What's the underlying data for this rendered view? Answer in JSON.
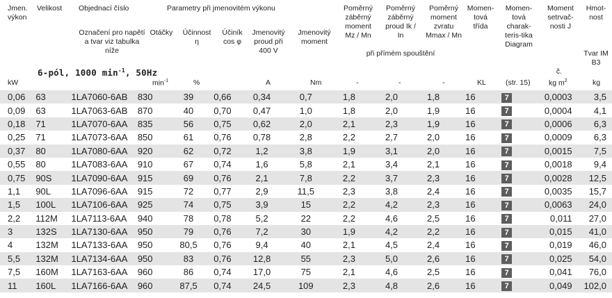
{
  "headers": {
    "power": "Jmen. výkon",
    "size": "Velikost",
    "order": "Objednací číslo",
    "order_sub": "Označení pro napětí a tvar viz tabulka níže",
    "rated_group": "Parametry při jmenovitém výkonu",
    "speed": "Otáčky",
    "eff": "Účinnost η",
    "pf": "Účiník cos φ",
    "current": "Jmenovitý proud při 400 V",
    "torque": "Jmenovitý moment",
    "start_torque": "Poměrný záběrný moment Mz / Mn",
    "start_current": "Poměrný záběrný proud Ik / In",
    "max_torque": "Poměrný moment zvratu Mmax / Mn",
    "class": "Momen-tová třída",
    "char": "Momen-tová charak-teris-tika Diagram",
    "inertia": "Moment setrvač-nosti J",
    "weight": "Hmot-nost",
    "weight_sub": "Tvar IM B3",
    "direct_start": "při přímém spouštění",
    "subtitle_main": "6-pól, 1000 min",
    "subtitle_sup": "-1",
    "subtitle_end": ", 50Hz",
    "inertia_c": "č."
  },
  "units": {
    "power": "kW",
    "speed": "min",
    "speed_sup": "-1",
    "eff": "%",
    "current": "A",
    "torque": "Nm",
    "dash1": "-",
    "dash2": "-",
    "dash3": "-",
    "class": "KL",
    "char": "(str. 15)",
    "inertia": "kg m",
    "inertia_sup": "2",
    "weight": "kg"
  },
  "rows": [
    [
      "0,06",
      "63",
      "1LA7060-6AB",
      "830",
      "39",
      "0,66",
      "0,34",
      "0,7",
      "1,8",
      "2,0",
      "1,8",
      "16",
      "7",
      "0,0003",
      "3,5"
    ],
    [
      "0,09",
      "63",
      "1LA7063-6AB",
      "870",
      "40",
      "0,70",
      "0,47",
      "1,0",
      "1,8",
      "2,0",
      "1,9",
      "16",
      "7",
      "0,0004",
      "4,1"
    ],
    [
      "0,18",
      "71",
      "1LA7070-6AA",
      "835",
      "56",
      "0,75",
      "0,62",
      "2,0",
      "2,1",
      "2,3",
      "1,9",
      "16",
      "7",
      "0,0006",
      "6,3"
    ],
    [
      "0,25",
      "71",
      "1LA7073-6AA",
      "850",
      "61",
      "0,76",
      "0,78",
      "2,8",
      "2,2",
      "2,7",
      "2,0",
      "16",
      "7",
      "0,0009",
      "6,3"
    ],
    [
      "0,37",
      "80",
      "1LA7080-6AA",
      "920",
      "62",
      "0,72",
      "1,2",
      "3,8",
      "1,9",
      "3,1",
      "2,0",
      "16",
      "7",
      "0,0015",
      "7,5"
    ],
    [
      "0,55",
      "80",
      "1LA7083-6AA",
      "910",
      "67",
      "0,74",
      "1,6",
      "5,8",
      "2,1",
      "3,4",
      "2,1",
      "16",
      "7",
      "0,0018",
      "9,4"
    ],
    [
      "0,75",
      "90S",
      "1LA7090-6AA",
      "915",
      "69",
      "0,76",
      "2,1",
      "7,8",
      "2,2",
      "3,7",
      "2,3",
      "16",
      "7",
      "0,0028",
      "12,5"
    ],
    [
      "1,1",
      "90L",
      "1LA7096-6AA",
      "915",
      "72",
      "0,77",
      "2,9",
      "11,5",
      "2,3",
      "3,8",
      "2,4",
      "16",
      "7",
      "0,0035",
      "15,7"
    ],
    [
      "1,5",
      "100L",
      "1LA7106-6AA",
      "925",
      "74",
      "0,75",
      "3,9",
      "15",
      "2,2",
      "4,2",
      "2,3",
      "16",
      "7",
      "0,0063",
      "24,0"
    ],
    [
      "2,2",
      "112M",
      "1LA7113-6AA",
      "940",
      "78",
      "0,78",
      "5,2",
      "22",
      "2,2",
      "4,6",
      "2,5",
      "16",
      "7",
      "0,011",
      "27,0"
    ],
    [
      "3",
      "132S",
      "1LA7130-6AA",
      "950",
      "79",
      "0,76",
      "7,2",
      "30",
      "1,9",
      "4,2",
      "2,2",
      "16",
      "7",
      "0,015",
      "41,0"
    ],
    [
      "4",
      "132M",
      "1LA7133-6AA",
      "950",
      "80,5",
      "0,76",
      "9,4",
      "40",
      "2,1",
      "4,5",
      "2,4",
      "16",
      "7",
      "0,019",
      "46,0"
    ],
    [
      "5,5",
      "132M",
      "1LA7134-6AA",
      "950",
      "83",
      "0,76",
      "12,8",
      "55",
      "2,3",
      "5,0",
      "2,6",
      "16",
      "7",
      "0,025",
      "54,0"
    ],
    [
      "7,5",
      "160M",
      "1LA7163-6AA",
      "960",
      "86",
      "0,74",
      "17,0",
      "75",
      "2,1",
      "4,6",
      "2,5",
      "16",
      "7",
      "0,041",
      "76,0"
    ],
    [
      "11",
      "160L",
      "1LA7166-6AA",
      "960",
      "87,5",
      "0,74",
      "24,5",
      "109",
      "2,3",
      "4,8",
      "2,6",
      "16",
      "7",
      "0,049",
      "102,0"
    ]
  ]
}
